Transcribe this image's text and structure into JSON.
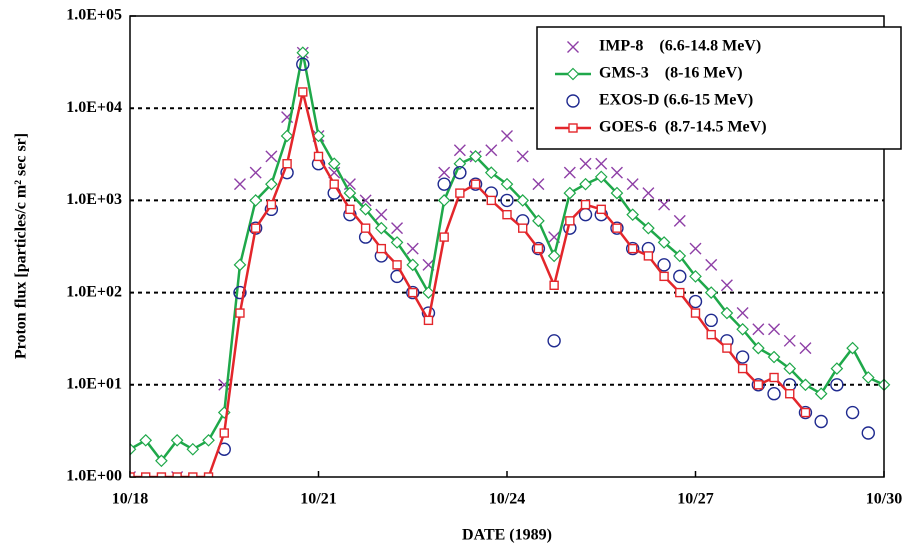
{
  "chart_data": {
    "type": "scatter",
    "xlabel": "DATE (1989)",
    "ylabel": "Proton  flux  [particles/c  m² sec sr]",
    "x": [
      18,
      18.25,
      18.5,
      18.75,
      19,
      19.25,
      19.5,
      19.75,
      20,
      20.25,
      20.5,
      20.75,
      21,
      21.25,
      21.5,
      21.75,
      22,
      22.25,
      22.5,
      22.75,
      23,
      23.25,
      23.5,
      23.75,
      24,
      24.25,
      24.5,
      24.75,
      25,
      25.25,
      25.5,
      25.75,
      26,
      26.25,
      26.5,
      26.75,
      27,
      27.25,
      27.5,
      27.75,
      28,
      28.25,
      28.5,
      28.75,
      29,
      29.25,
      29.5,
      29.75,
      30
    ],
    "xlim": [
      18,
      30
    ],
    "xticks": [
      {
        "value": 18,
        "label": "10/18"
      },
      {
        "value": 21,
        "label": "10/21"
      },
      {
        "value": 24,
        "label": "10/24"
      },
      {
        "value": 27,
        "label": "10/27"
      },
      {
        "value": 30,
        "label": "10/30"
      }
    ],
    "ylim": [
      1,
      100000
    ],
    "yscale": "log",
    "yticks": [
      {
        "value": 1,
        "label": "1.0E+00"
      },
      {
        "value": 10,
        "label": "1.0E+01"
      },
      {
        "value": 100,
        "label": "1.0E+02"
      },
      {
        "value": 1000,
        "label": "1.0E+03"
      },
      {
        "value": 10000,
        "label": "1.0E+04"
      },
      {
        "value": 100000,
        "label": "1.0E+05"
      }
    ],
    "grid": true,
    "legend": "upper right",
    "series": [
      {
        "name": "IMP-8    (6.6-14.8 MeV)",
        "color": "#8e3fa6",
        "marker": "x",
        "line": false,
        "values": [
          1,
          null,
          null,
          1,
          null,
          null,
          10,
          1500,
          2000,
          3000,
          8000,
          40000,
          5000,
          2000,
          1500,
          1000,
          700,
          500,
          300,
          200,
          2000,
          3500,
          3000,
          3500,
          5000,
          3000,
          1500,
          400,
          2000,
          2500,
          2500,
          2000,
          1500,
          1200,
          900,
          600,
          300,
          200,
          120,
          60,
          40,
          40,
          30,
          25,
          null,
          null,
          null,
          null,
          null
        ]
      },
      {
        "name": "GMS-3    (8-16 MeV)",
        "color": "#1fa84a",
        "marker": "diamond",
        "line": true,
        "values": [
          2,
          2.5,
          1.5,
          2.5,
          2,
          2.5,
          5,
          200,
          1000,
          1500,
          5000,
          40000,
          5000,
          2500,
          1200,
          800,
          500,
          350,
          200,
          100,
          1000,
          2500,
          3000,
          2000,
          1500,
          1000,
          600,
          250,
          1200,
          1500,
          1800,
          1200,
          700,
          500,
          350,
          250,
          150,
          100,
          60,
          40,
          25,
          20,
          15,
          10,
          8,
          15,
          25,
          12,
          10
        ]
      },
      {
        "name": "EXOS-D (6.6-15 MeV)",
        "color": "#1f2a8f",
        "marker": "circle",
        "line": false,
        "values": [
          null,
          null,
          null,
          null,
          null,
          null,
          2,
          100,
          500,
          800,
          2000,
          30000,
          2500,
          1200,
          700,
          400,
          250,
          150,
          100,
          60,
          1500,
          2000,
          1500,
          1200,
          1000,
          600,
          300,
          30,
          500,
          700,
          700,
          500,
          300,
          300,
          200,
          150,
          80,
          50,
          30,
          20,
          10,
          8,
          10,
          5,
          4,
          10,
          5,
          3,
          null
        ]
      },
      {
        "name": "GOES-6  (8.7-14.5 MeV)",
        "color": "#e3262b",
        "marker": "square",
        "line": true,
        "values": [
          1,
          1,
          1,
          1,
          1,
          1,
          3,
          60,
          500,
          900,
          2500,
          15000,
          3000,
          1500,
          800,
          500,
          300,
          200,
          100,
          50,
          400,
          1200,
          1500,
          1000,
          700,
          500,
          300,
          120,
          600,
          900,
          800,
          500,
          300,
          250,
          150,
          100,
          60,
          35,
          25,
          15,
          10,
          12,
          8,
          5,
          null,
          null,
          null,
          null,
          null
        ]
      }
    ]
  }
}
